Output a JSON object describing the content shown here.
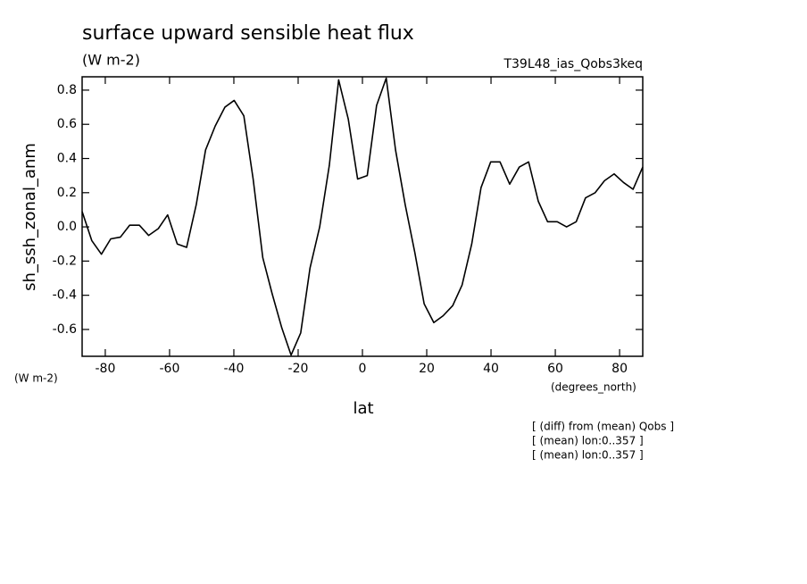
{
  "chart_data": {
    "type": "line",
    "title": "surface upward sensible heat flux",
    "subtitle": "(W m-2)",
    "run_label": "T39L48_ias_Qobs3keq",
    "y_label": "sh_ssh_zonal_anm",
    "y_units": "(W m-2)",
    "x_units": "(degrees_north)",
    "x_label": "lat",
    "notes": [
      "[ (diff) from (mean) Qobs ]",
      "[ (mean) lon:0..357 ]",
      "[ (mean) lon:0..357 ]"
    ],
    "x": [
      -87.2,
      -84.2,
      -81.2,
      -78.3,
      -75.3,
      -72.4,
      -69.4,
      -66.5,
      -63.5,
      -60.6,
      -57.6,
      -54.7,
      -51.7,
      -48.8,
      -45.8,
      -42.8,
      -39.9,
      -36.9,
      -34.0,
      -31.0,
      -28.1,
      -25.1,
      -22.2,
      -19.2,
      -16.3,
      -13.3,
      -10.3,
      -7.4,
      -4.4,
      -1.5,
      1.5,
      4.4,
      7.4,
      10.3,
      13.3,
      16.3,
      19.2,
      22.2,
      25.1,
      28.1,
      31.0,
      34.0,
      36.9,
      39.9,
      42.8,
      45.8,
      48.8,
      51.7,
      54.7,
      57.6,
      60.6,
      63.5,
      66.5,
      69.4,
      72.4,
      75.3,
      78.3,
      81.2,
      84.2,
      87.2
    ],
    "series": [
      {
        "color": "#000000",
        "values": [
          0.09,
          -0.08,
          -0.16,
          -0.07,
          -0.06,
          0.01,
          0.01,
          -0.05,
          -0.01,
          0.07,
          -0.1,
          -0.12,
          0.13,
          0.45,
          0.59,
          0.7,
          0.74,
          0.65,
          0.28,
          -0.18,
          -0.39,
          -0.59,
          -0.75,
          -0.62,
          -0.24,
          0.0,
          0.36,
          0.86,
          0.63,
          0.28,
          0.3,
          0.71,
          0.87,
          0.45,
          0.13,
          -0.15,
          -0.45,
          -0.56,
          -0.52,
          -0.46,
          -0.34,
          -0.1,
          0.23,
          0.38,
          0.38,
          0.25,
          0.35,
          0.38,
          0.15,
          0.03,
          0.03,
          0.0,
          0.03,
          0.17,
          0.2,
          0.27,
          0.31,
          0.26,
          0.22,
          0.35
        ]
      }
    ],
    "xlim": [
      -87.2,
      87.2
    ],
    "ylim": [
      -0.757,
      0.878
    ],
    "xticks": [
      -80,
      -60,
      -40,
      -20,
      0,
      20,
      40,
      60,
      80
    ],
    "yticks": [
      -0.6,
      -0.4,
      -0.2,
      {
        "value": 0,
        "label": "0.0"
      },
      0.2,
      0.4,
      0.6,
      0.8
    ]
  }
}
